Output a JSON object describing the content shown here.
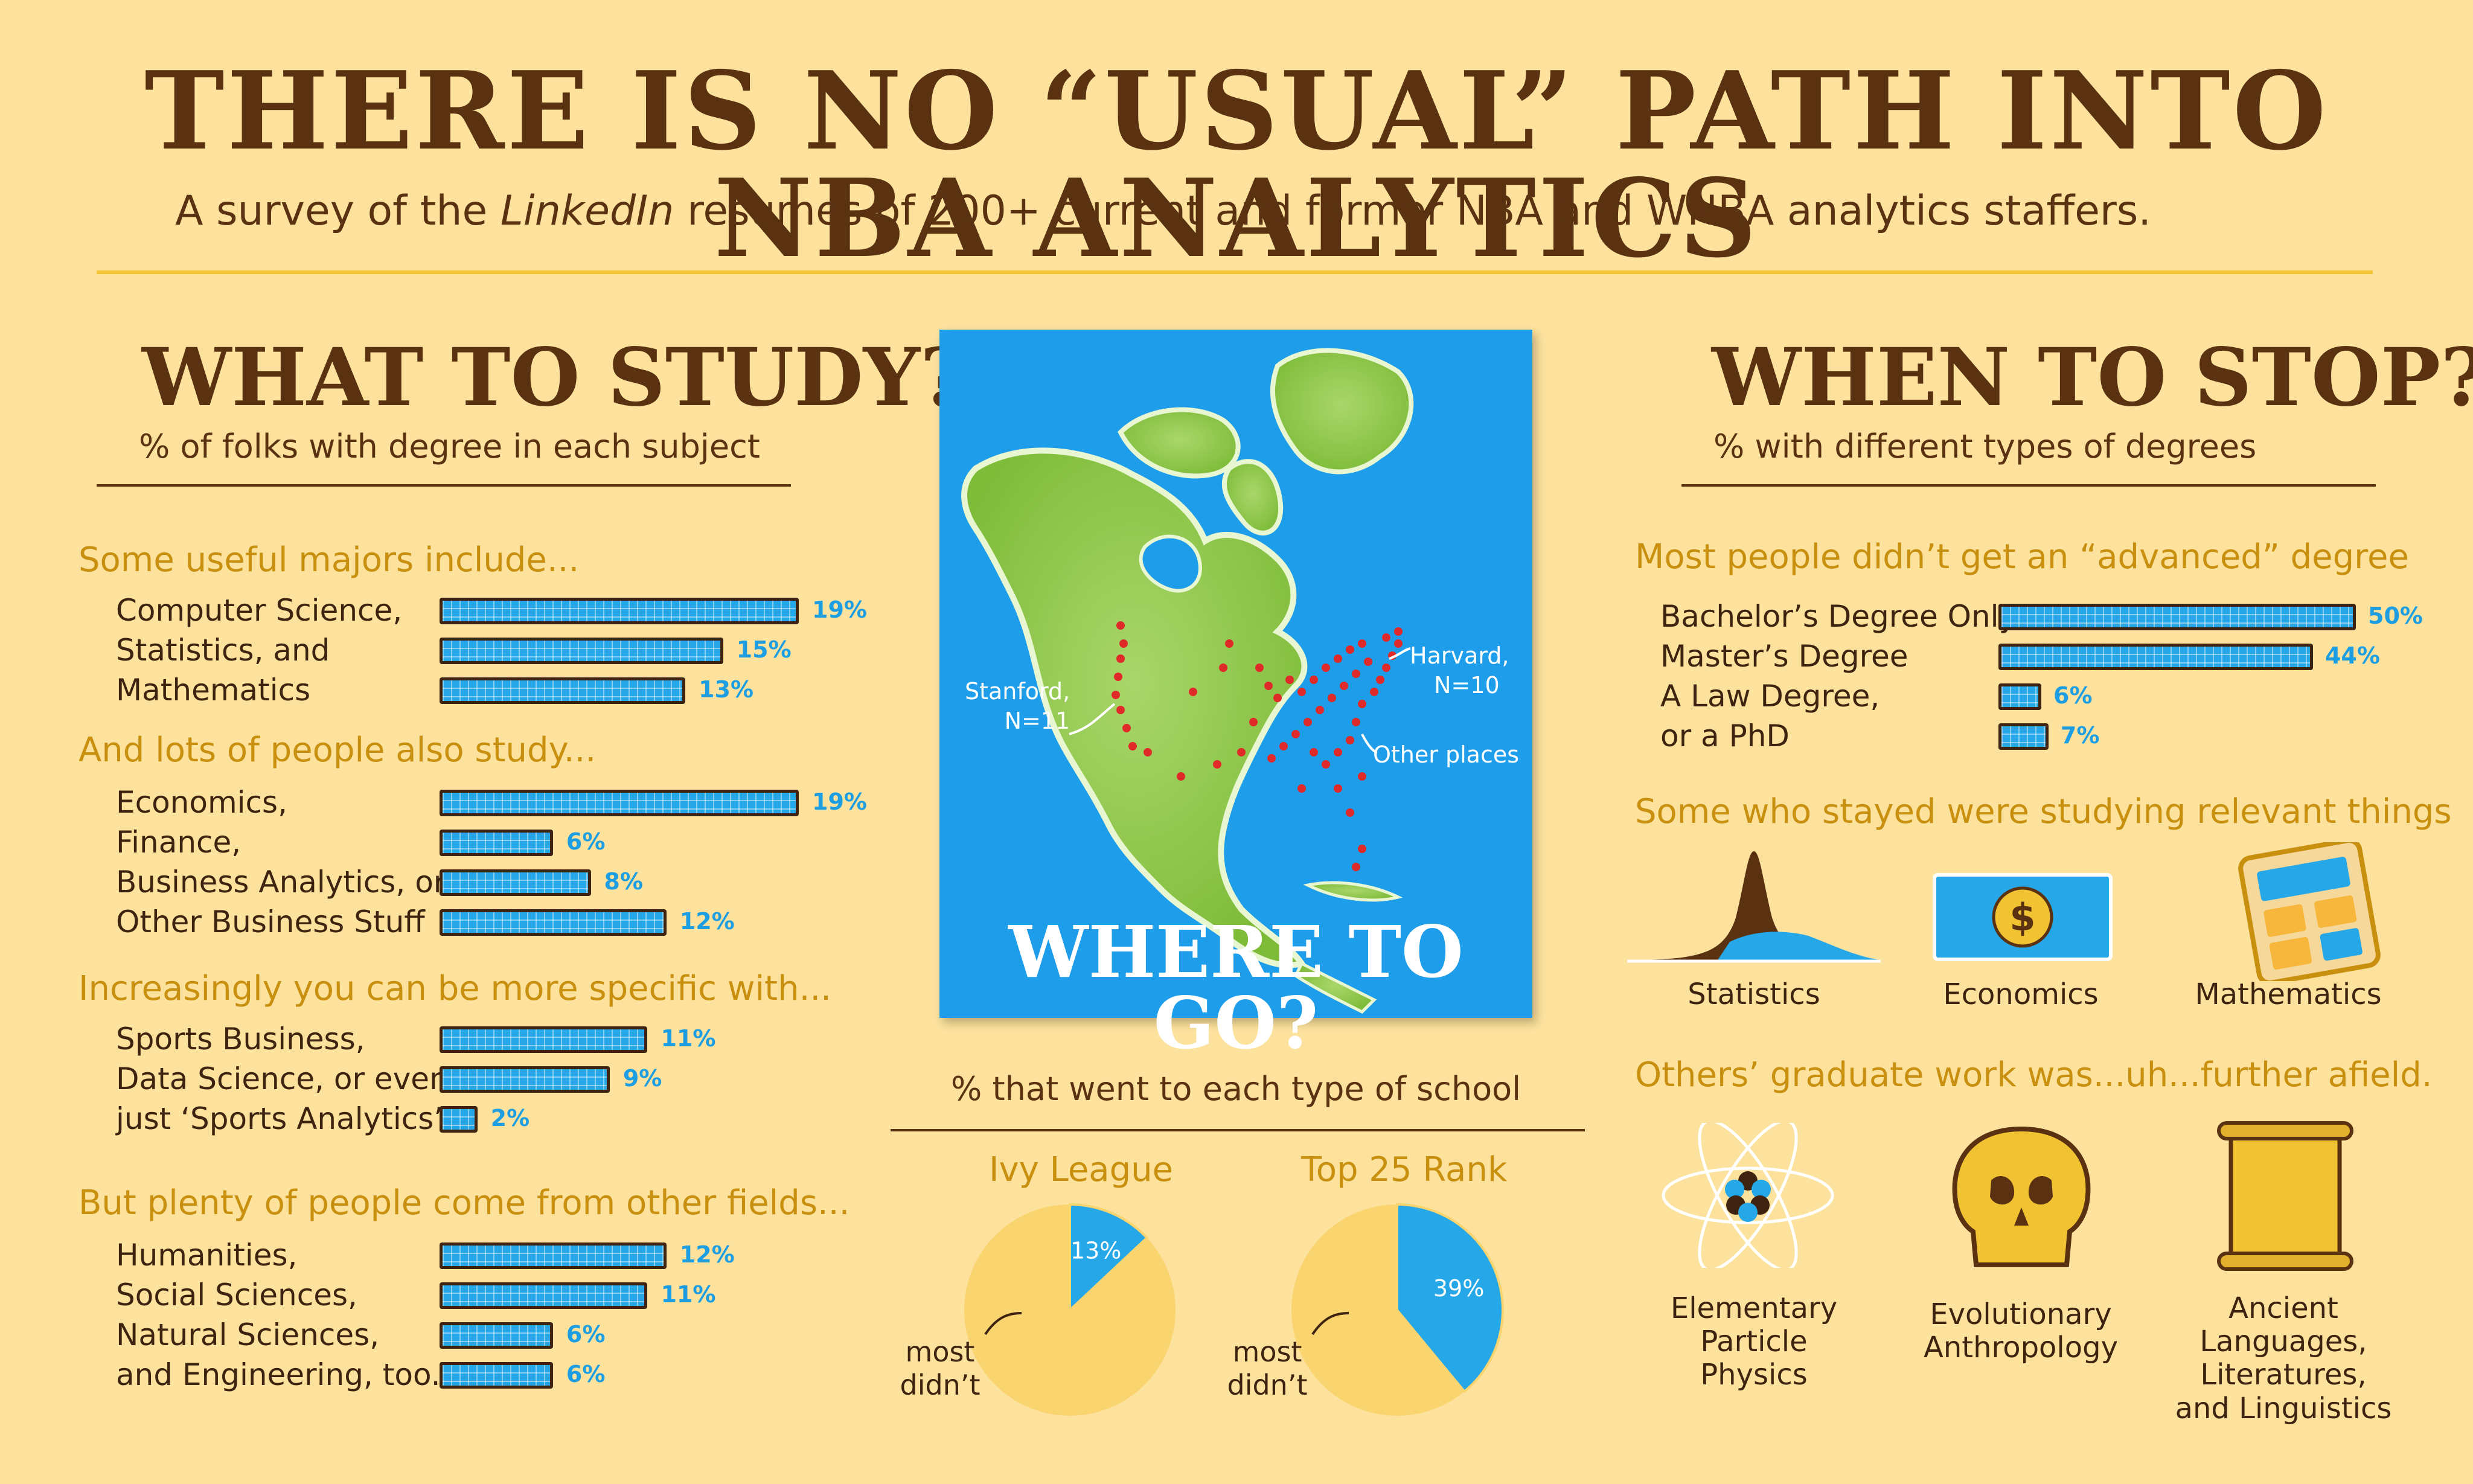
{
  "header": {
    "title": "THERE IS NO “USUAL” PATH INTO NBA ANALYTICS",
    "subtitle_pre": "A survey of the ",
    "subtitle_italic": "LinkedIn",
    "subtitle_post": " resumes of 200+ current and former NBA and WNBA analytics staffers."
  },
  "left": {
    "title": "WHAT TO STUDY?",
    "subtitle": "% of folks with degree in each subject"
  },
  "right": {
    "title": "WHEN TO STOP?",
    "subtitle": "% with different types of degrees",
    "relevant_head": "Some who stayed were studying relevant things",
    "relevant_items": [
      "Statistics",
      "Economics",
      "Mathematics"
    ],
    "afield_head": "Others’ graduate work was...uh...further afield.",
    "afield_items": [
      {
        "lines": [
          "Elementary",
          "Particle",
          "Physics"
        ]
      },
      {
        "lines": [
          "Evolutionary",
          "Anthropology"
        ]
      },
      {
        "lines": [
          "Ancient",
          "Languages,",
          "Literatures,",
          "and Linguistics"
        ]
      }
    ]
  },
  "map": {
    "title": "WHERE TO GO?",
    "stanford": [
      "Stanford,",
      "N=11"
    ],
    "harvard": [
      "Harvard,",
      "N=10"
    ],
    "other": "Other places"
  },
  "chart_data": [
    {
      "type": "bar",
      "title": "WHAT TO STUDY?",
      "subtitle": "% of folks with degree in each subject",
      "groups": [
        {
          "heading": "Some useful majors include...",
          "categories": [
            "Computer Science,",
            "Statistics, and",
            "Mathematics"
          ],
          "values": [
            19,
            15,
            13
          ]
        },
        {
          "heading": "And lots of people also study...",
          "categories": [
            "Economics,",
            "Finance,",
            "Business Analytics, or",
            "Other Business Stuff"
          ],
          "values": [
            19,
            6,
            8,
            12
          ]
        },
        {
          "heading": "Increasingly you can be more specific with...",
          "categories": [
            "Sports Business,",
            "Data Science, or even",
            "just ‘Sports Analytics’"
          ],
          "values": [
            11,
            9,
            2
          ]
        },
        {
          "heading": "But plenty of people come from other fields...",
          "categories": [
            "Humanities,",
            "Social Sciences,",
            "Natural Sciences,",
            "and Engineering, too."
          ],
          "values": [
            12,
            11,
            6,
            6
          ]
        }
      ]
    },
    {
      "type": "bar",
      "title": "WHEN TO STOP?",
      "subtitle": "% with different types of degrees",
      "groups": [
        {
          "heading": "Most people didn’t get an “advanced” degree",
          "categories": [
            "Bachelor’s Degree Only",
            "Master’s Degree",
            "A Law Degree,",
            "or a PhD"
          ],
          "values": [
            50,
            44,
            6,
            7
          ]
        }
      ]
    },
    {
      "type": "pie",
      "title": "% that went to each type of school",
      "pies": [
        {
          "name": "Ivy League",
          "value": 13,
          "value_label": "13%",
          "rest_label": [
            "most",
            "didn’t"
          ]
        },
        {
          "name": "Top 25 Rank",
          "value": 39,
          "value_label": "39%",
          "rest_label": [
            "most",
            "didn’t"
          ]
        }
      ]
    }
  ],
  "colors": {
    "background": "#FCE29C",
    "title_brown": "#5A3212",
    "heading_gold": "#C9900F",
    "bar_blue": "#25A7E8",
    "pct_blue": "#1D9EE3",
    "map_ocean": "#1E9EEA",
    "land_green": "#8CC63F",
    "pie_yellow": "#FAD46E"
  },
  "icons": [
    "normal-curve-icon",
    "dollar-bill-icon",
    "calculator-icon",
    "atom-icon",
    "skull-icon",
    "scroll-icon"
  ]
}
